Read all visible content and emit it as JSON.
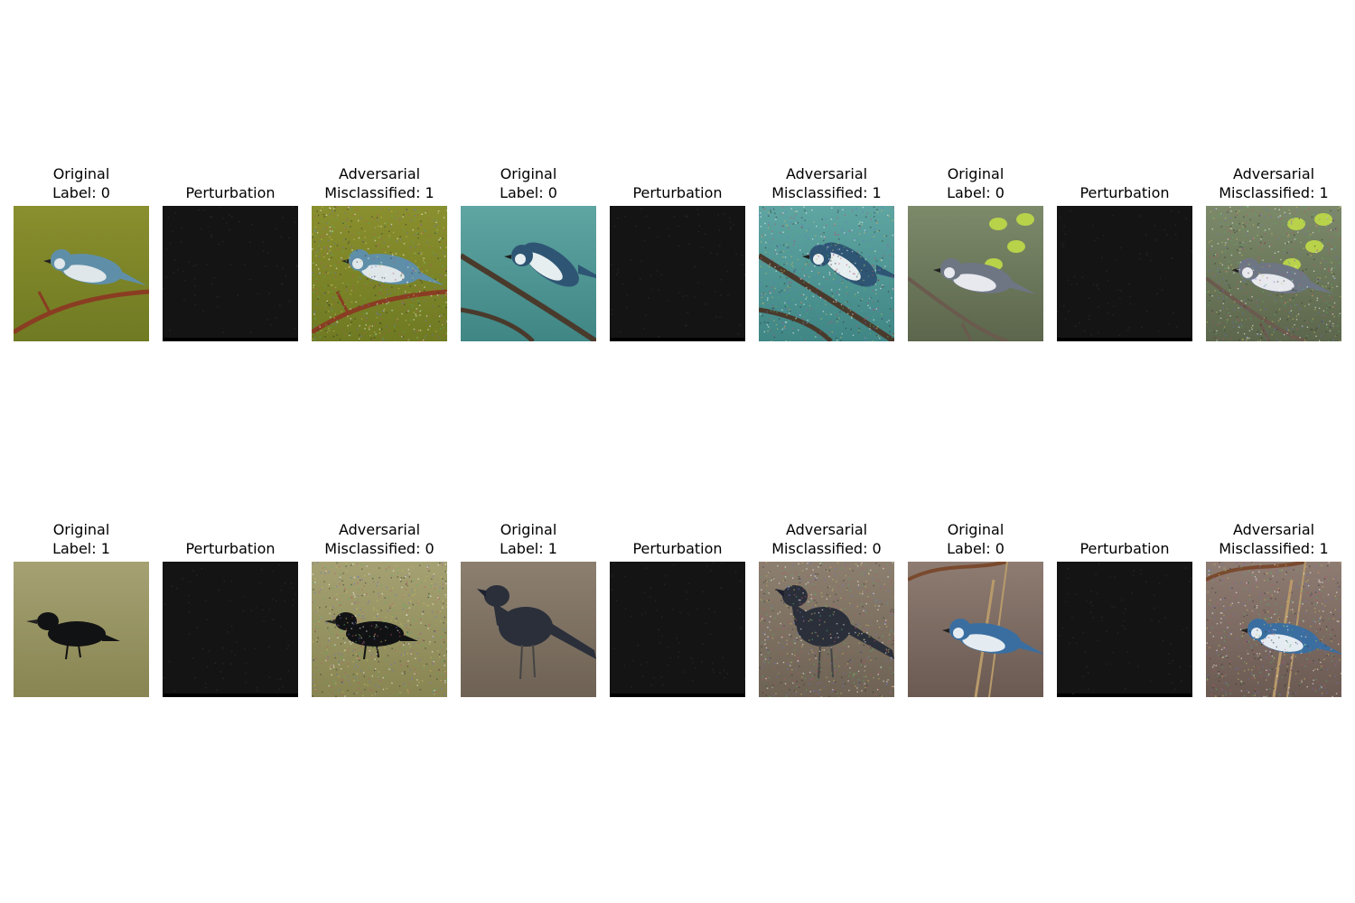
{
  "rows": [
    {
      "panels": [
        {
          "kind": "original",
          "title": "Original\nLabel: 0",
          "scene": {
            "bg": "#8a8f2e",
            "bg2": "#6f7a22",
            "bird": "#5f8fa8",
            "belly": "#dfe7ea",
            "branch": "#8a3d22",
            "style": "warbler"
          }
        },
        {
          "kind": "perturbation",
          "title": "Perturbation"
        },
        {
          "kind": "adversarial",
          "title": "Adversarial\nMisclassified: 1",
          "scene": {
            "bg": "#8a8f2e",
            "bg2": "#6f7a22",
            "bird": "#5f8fa8",
            "belly": "#dfe7ea",
            "branch": "#8a3d22",
            "style": "warbler"
          }
        },
        {
          "kind": "original",
          "title": "Original\nLabel: 0",
          "scene": {
            "bg": "#5fa5a2",
            "bg2": "#3f8685",
            "bird": "#2e5573",
            "belly": "#e6eef0",
            "branch": "#4a3a2c",
            "style": "warbler2"
          }
        },
        {
          "kind": "perturbation",
          "title": "Perturbation"
        },
        {
          "kind": "adversarial",
          "title": "Adversarial\nMisclassified: 1",
          "scene": {
            "bg": "#5fa5a2",
            "bg2": "#3f8685",
            "bird": "#2e5573",
            "belly": "#e6eef0",
            "branch": "#4a3a2c",
            "style": "warbler2"
          }
        },
        {
          "kind": "original",
          "title": "Original\nLabel: 0",
          "scene": {
            "bg": "#7c8a6a",
            "bg2": "#5c664c",
            "bird": "#6e7684",
            "belly": "#e7e9ee",
            "branch": "#6b5a4e",
            "style": "warbler3"
          }
        },
        {
          "kind": "perturbation",
          "title": "Perturbation"
        },
        {
          "kind": "adversarial",
          "title": "Adversarial\nMisclassified: 1",
          "scene": {
            "bg": "#7c8a6a",
            "bg2": "#5c664c",
            "bird": "#6e7684",
            "belly": "#e7e9ee",
            "branch": "#6b5a4e",
            "style": "warbler3"
          }
        }
      ]
    },
    {
      "panels": [
        {
          "kind": "original",
          "title": "Original\nLabel: 1",
          "scene": {
            "bg": "#a5a173",
            "bg2": "#888552",
            "bird": "#111214",
            "belly": "#1a1b1e",
            "branch": "none",
            "style": "crow"
          }
        },
        {
          "kind": "perturbation",
          "title": "Perturbation"
        },
        {
          "kind": "adversarial",
          "title": "Adversarial\nMisclassified: 0",
          "scene": {
            "bg": "#a5a173",
            "bg2": "#888552",
            "bird": "#111214",
            "belly": "#1a1b1e",
            "branch": "none",
            "style": "crow"
          }
        },
        {
          "kind": "original",
          "title": "Original\nLabel: 1",
          "scene": {
            "bg": "#8c7f6f",
            "bg2": "#6e6254",
            "bird": "#2a2f3a",
            "belly": "#323846",
            "branch": "none",
            "style": "crow2"
          }
        },
        {
          "kind": "perturbation",
          "title": "Perturbation"
        },
        {
          "kind": "adversarial",
          "title": "Adversarial\nMisclassified: 0",
          "scene": {
            "bg": "#8c7f6f",
            "bg2": "#6e6254",
            "bird": "#2a2f3a",
            "belly": "#323846",
            "branch": "none",
            "style": "crow2"
          }
        },
        {
          "kind": "original",
          "title": "Original\nLabel: 0",
          "scene": {
            "bg": "#8e7c72",
            "bg2": "#6b5a52",
            "bird": "#3a6ea0",
            "belly": "#e4ecf2",
            "branch": "#7a4a2e",
            "style": "warbler4"
          }
        },
        {
          "kind": "perturbation",
          "title": "Perturbation"
        },
        {
          "kind": "adversarial",
          "title": "Adversarial\nMisclassified: 1",
          "scene": {
            "bg": "#8e7c72",
            "bg2": "#6b5a52",
            "bird": "#3a6ea0",
            "belly": "#e4ecf2",
            "branch": "#7a4a2e",
            "style": "warbler4"
          }
        }
      ]
    }
  ]
}
